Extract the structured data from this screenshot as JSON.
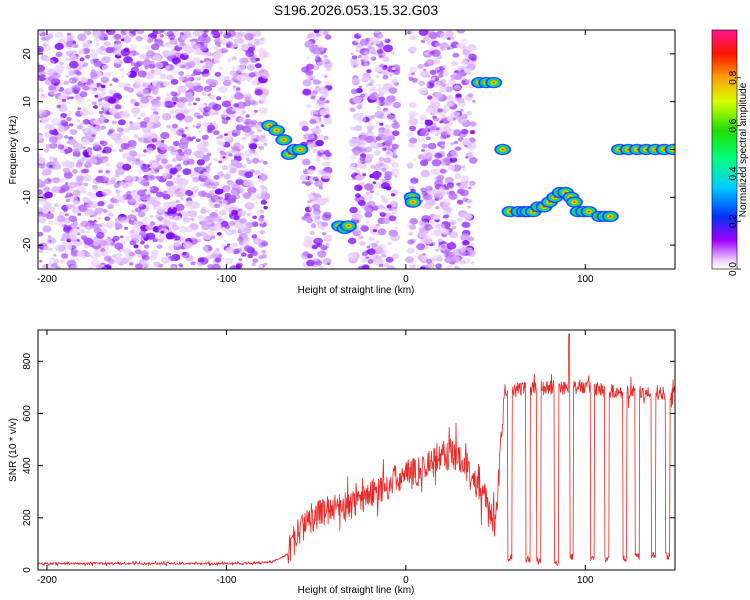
{
  "title": "S196.2026.053.15.32.G03",
  "chart_data": [
    {
      "type": "heatmap",
      "xlabel": "Height of straight line (km)",
      "ylabel": "Frequency (Hz)",
      "xlim": [
        -205,
        150
      ],
      "ylim": [
        -25,
        25
      ],
      "xticks": [
        -200,
        -100,
        0,
        100
      ],
      "xtick_labels": [
        "-200",
        "-100",
        "0",
        "100"
      ],
      "yticks": [
        20,
        10,
        0,
        -10,
        -20
      ],
      "ytick_labels": [
        "20",
        "10",
        "0",
        "-10",
        "-20"
      ],
      "noise_segments": [
        [
          -205,
          -78
        ],
        [
          -57,
          -43
        ],
        [
          -30,
          -5
        ],
        [
          2,
          5
        ],
        [
          8,
          38
        ]
      ],
      "signal_tracks": [
        {
          "x": [
            -76,
            -72,
            -68,
            -65,
            -62,
            -59
          ],
          "y": [
            5,
            4,
            2,
            -1,
            0,
            0
          ]
        },
        {
          "x": [
            -37,
            -34,
            -32
          ],
          "y": [
            -16,
            -16.5,
            -16
          ]
        },
        {
          "x": [
            3.5,
            4
          ],
          "y": [
            -10,
            -11
          ]
        },
        {
          "x": [
            41,
            45,
            49
          ],
          "y": [
            14,
            14,
            14
          ]
        },
        {
          "x": [
            54
          ],
          "y": [
            0
          ]
        },
        {
          "x": [
            58,
            63,
            66
          ],
          "y": [
            -13,
            -13,
            -13
          ]
        },
        {
          "x": [
            68,
            71,
            74,
            77,
            80,
            83,
            86,
            89,
            92,
            94
          ],
          "y": [
            -13,
            -13,
            -12,
            -12,
            -11,
            -10,
            -9,
            -9,
            -10,
            -11
          ]
        },
        {
          "x": [
            96,
            99,
            102
          ],
          "y": [
            -13,
            -13,
            -13
          ]
        },
        {
          "x": [
            108,
            111,
            114
          ],
          "y": [
            -14,
            -14,
            -14
          ]
        },
        {
          "x": [
            119,
            124,
            129,
            134,
            139,
            144,
            149
          ],
          "y": [
            0,
            0,
            0,
            0,
            0,
            0,
            0
          ]
        }
      ],
      "colorbar": {
        "label": "Normalized spectral amplitude",
        "range": [
          0,
          1
        ],
        "ticks": [
          0.0,
          0.2,
          0.4,
          0.6,
          0.8
        ],
        "tick_labels": [
          "0.0",
          "0.2",
          "0.4",
          "0.6",
          "0.8"
        ]
      }
    },
    {
      "type": "line",
      "xlabel": "Height of straight line (km)",
      "ylabel": "SNR (10 * v/v)",
      "xlim": [
        -205,
        150
      ],
      "ylim": [
        0,
        920
      ],
      "xticks": [
        -200,
        -100,
        0,
        100
      ],
      "xtick_labels": [
        "-200",
        "-100",
        "0",
        "100"
      ],
      "yticks": [
        0,
        200,
        400,
        600,
        800
      ],
      "ytick_labels": [
        "0",
        "200",
        "400",
        "600",
        "800"
      ],
      "series_color": "#e62a2a",
      "baseline_profile": {
        "x": [
          -205,
          -90,
          -75,
          -66,
          -60,
          -50,
          -40,
          -30,
          -20,
          -10,
          0,
          10,
          20,
          30,
          40,
          46,
          50,
          55,
          60,
          80,
          100,
          120,
          150
        ],
        "y": [
          25,
          25,
          30,
          60,
          150,
          210,
          240,
          250,
          290,
          330,
          360,
          390,
          440,
          440,
          330,
          250,
          160,
          690,
          690,
          700,
          700,
          680,
          680
        ]
      },
      "dropouts": [
        {
          "x": 58,
          "y": 30
        },
        {
          "x": 68,
          "y": 25
        },
        {
          "x": 74,
          "y": 20
        },
        {
          "x": 84,
          "y": 10
        },
        {
          "x": 92,
          "y": 40
        },
        {
          "x": 104,
          "y": 30
        },
        {
          "x": 112,
          "y": 30
        },
        {
          "x": 122,
          "y": 30
        },
        {
          "x": 129,
          "y": 40
        },
        {
          "x": 138,
          "y": 40
        },
        {
          "x": 146,
          "y": 40
        }
      ],
      "peak": {
        "x": 91,
        "y": 905
      }
    }
  ]
}
